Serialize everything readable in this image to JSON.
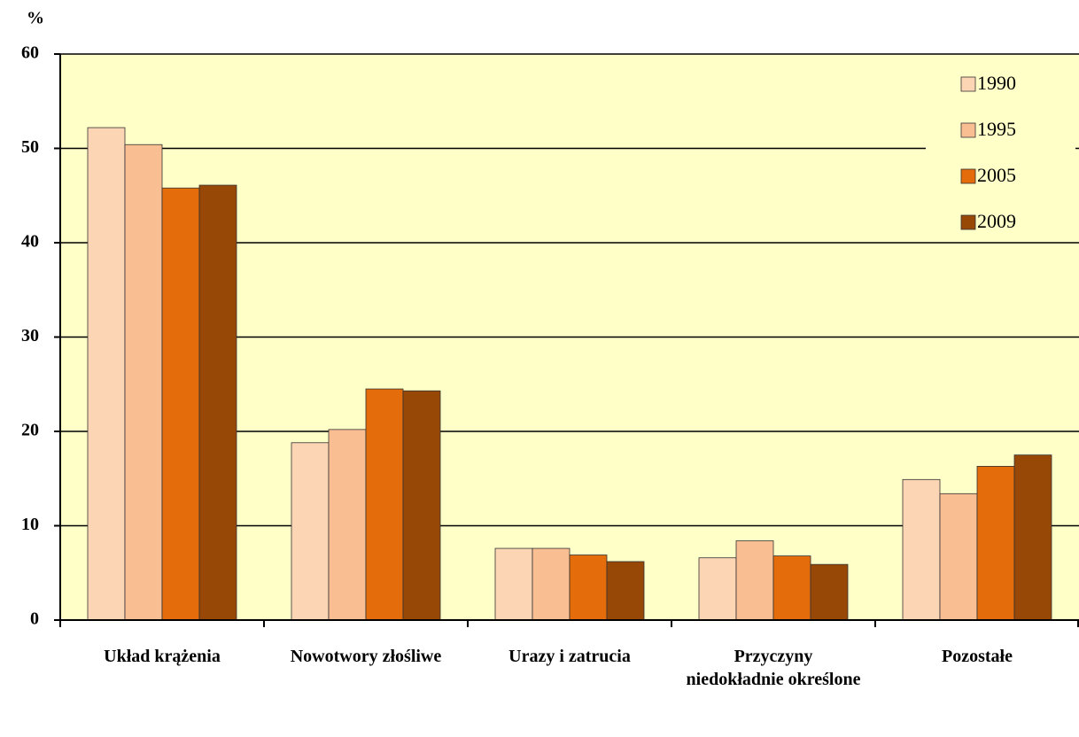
{
  "chart_data": {
    "type": "bar",
    "y_label": "%",
    "categories": [
      "Układ krążenia",
      "Nowotwory złośliwe",
      "Urazy i zatrucia",
      "Przyczyny niedokładnie określone",
      "Pozostałe"
    ],
    "series": [
      {
        "name": "1990",
        "color": "#fcd5b4",
        "values": [
          52.2,
          18.8,
          7.6,
          6.6,
          14.9
        ]
      },
      {
        "name": "1995",
        "color": "#f9be92",
        "values": [
          50.4,
          20.2,
          7.6,
          8.4,
          13.4
        ]
      },
      {
        "name": "2005",
        "color": "#e46c0a",
        "values": [
          45.8,
          24.5,
          6.9,
          6.8,
          16.3
        ]
      },
      {
        "name": "2009",
        "color": "#974806",
        "values": [
          46.1,
          24.3,
          6.2,
          5.9,
          17.5
        ]
      }
    ],
    "ylim": [
      0,
      60
    ],
    "yticks": [
      0,
      10,
      20,
      30,
      40,
      50,
      60
    ],
    "grid": true,
    "legend": "top-right",
    "plot_background": "#ffffc8"
  }
}
